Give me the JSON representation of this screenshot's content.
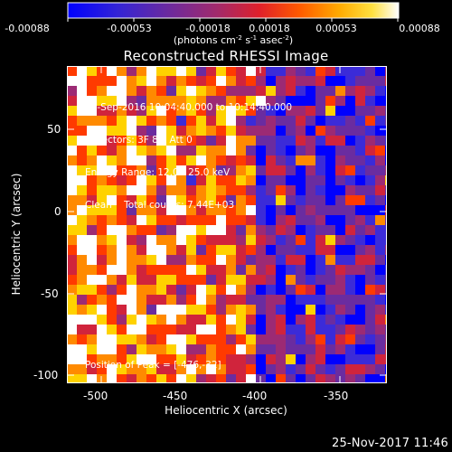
{
  "colorbar": {
    "tick_labels": [
      "-0.00088",
      "-0.00053",
      "-0.00018",
      "0.00018",
      "0.00053",
      "0.00088"
    ],
    "units_html": "(photons cm<tspan baseline-shift=\"super\" font-size=\"7\">-2</tspan> s<tspan baseline-shift=\"super\" font-size=\"7\">-1</tspan> asec<tspan baseline-shift=\"super\" font-size=\"7\">-2</tspan>)",
    "colors": [
      "#0000ff",
      "#3b2bd8",
      "#6a2ca0",
      "#9c2a74",
      "#d0243c",
      "#ff3a00",
      "#ff8a00",
      "#ffd200",
      "#ffffff"
    ]
  },
  "title": "Reconstructed RHESSI Image",
  "info_lines": [
    "10-Sep-2016 10:04:40.000 to 10:14:40.000",
    "Detectors: 3F 8F, Att 0",
    "Energy Range: 12.0 - 25.0 keV",
    "Clean    Total counts: 7.44E+03"
  ],
  "peak_text": "Position of Peak = [-476,-32]",
  "axes": {
    "xlabel": "Heliocentric X (arcsec)",
    "ylabel": "Heliocentric Y (arcsec)",
    "xticks": [
      "-500",
      "-450",
      "-400",
      "-350"
    ],
    "yticks": [
      "50",
      "0",
      "-50",
      "-100"
    ]
  },
  "footer_timestamp": "25-Nov-2017 11:46"
}
